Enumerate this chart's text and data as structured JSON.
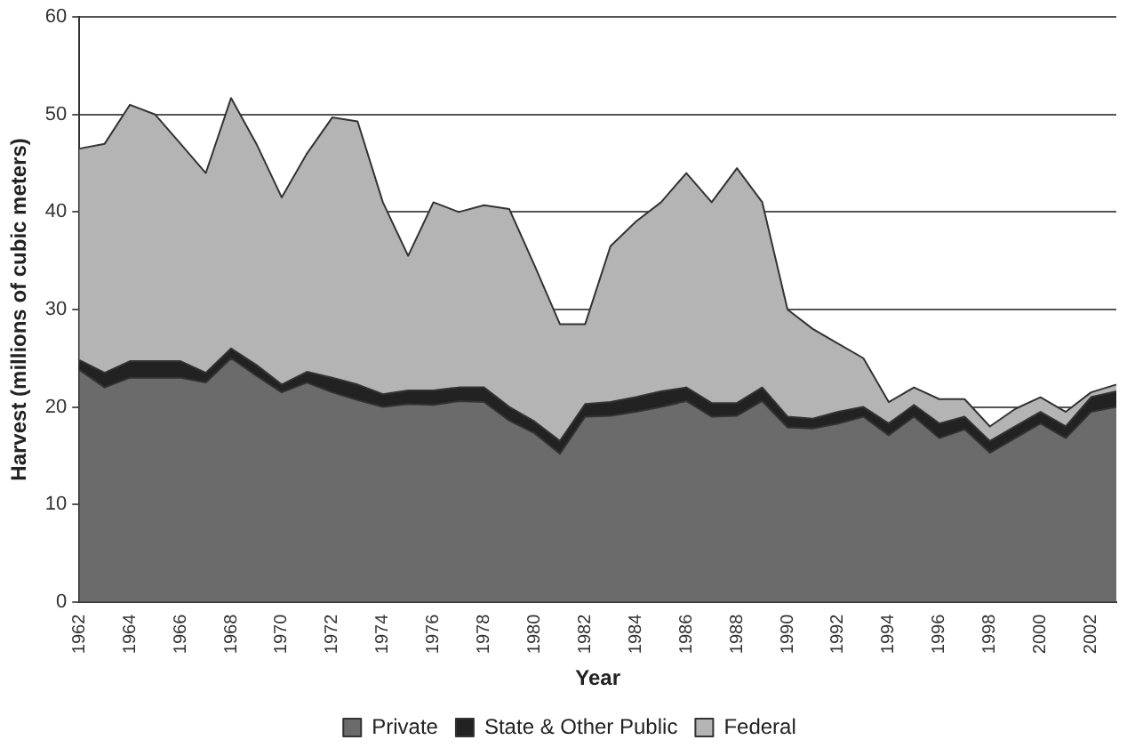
{
  "chart_data": {
    "type": "area",
    "stacked": true,
    "xlabel": "Year",
    "ylabel": "Harvest (millions of cubic meters)",
    "categories": [
      "1962",
      null,
      "1964",
      null,
      "1966",
      null,
      "1968",
      null,
      "1970",
      null,
      "1972",
      null,
      "1974",
      null,
      "1976",
      null,
      "1978",
      null,
      "1980",
      null,
      "1982",
      null,
      "1984",
      null,
      "1986",
      null,
      "1988",
      null,
      "1990",
      null,
      "1992",
      null,
      "1994",
      null,
      "1996",
      null,
      "1998",
      null,
      "2000",
      null,
      "2002",
      null
    ],
    "series": [
      {
        "name": "Private",
        "color": "#6b6b6b",
        "values": [
          23.8,
          22,
          23,
          23,
          23,
          22.5,
          25,
          23.2,
          21.5,
          22.5,
          21.5,
          20.7,
          20,
          20.3,
          20.2,
          20.6,
          20.5,
          18.6,
          17.3,
          15.2,
          19,
          19.1,
          19.5,
          20,
          20.6,
          19,
          19.1,
          20.6,
          17.9,
          17.8,
          18.3,
          19,
          17.1,
          19,
          16.8,
          17.7,
          15.3,
          16.8,
          18.3,
          16.8,
          19.5,
          20
        ]
      },
      {
        "name": "State & Other Public",
        "color": "#222222",
        "values": [
          1.0,
          1.5,
          1.7,
          1.7,
          1.7,
          1.0,
          1.0,
          1.1,
          0.8,
          1.1,
          1.5,
          1.6,
          1.3,
          1.4,
          1.5,
          1.4,
          1.5,
          1.4,
          1.2,
          1.3,
          1.3,
          1.4,
          1.5,
          1.6,
          1.4,
          1.4,
          1.3,
          1.4,
          1.1,
          1.0,
          1.2,
          1.0,
          1.2,
          1.2,
          1.5,
          1.3,
          1.2,
          1.2,
          1.2,
          1.2,
          1.5,
          1.6
        ]
      },
      {
        "name": "Federal",
        "color": "#b4b4b4",
        "values": [
          21.7,
          23.5,
          26.3,
          25.3,
          22.3,
          20.5,
          25.7,
          22.7,
          19.2,
          22.4,
          26.7,
          27.0,
          19.7,
          13.8,
          19.3,
          18.0,
          18.7,
          20.3,
          16.0,
          12.0,
          8.2,
          16.0,
          18.0,
          19.4,
          22.0,
          20.6,
          24.1,
          19.0,
          11.0,
          9.2,
          7.0,
          5.0,
          2.2,
          1.8,
          2.5,
          1.8,
          1.5,
          1.8,
          1.5,
          1.5,
          0.5,
          0.7
        ]
      }
    ],
    "ylim": [
      0,
      60
    ],
    "yticks": [
      0,
      10,
      20,
      30,
      40,
      50,
      60
    ],
    "grid": "y",
    "legend": "bottom"
  }
}
